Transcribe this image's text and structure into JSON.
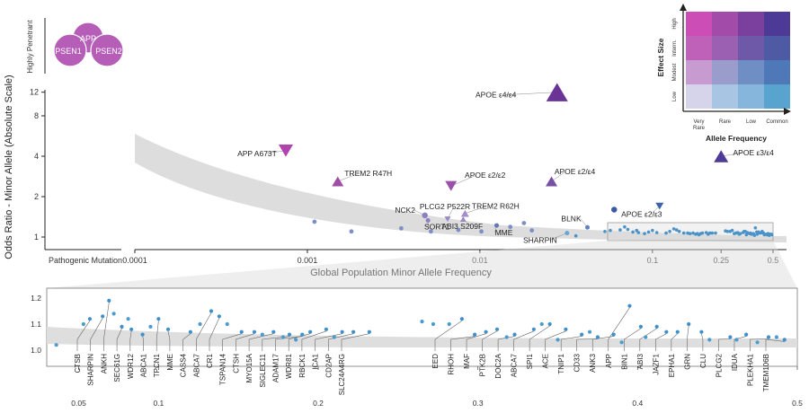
{
  "chart_data": [
    {
      "type": "scatter",
      "panel": "main",
      "xlabel": "Global Population Minor Allele Frequency",
      "ylabel": "Odds Ratio - Minor Allele (Absolute Scale)",
      "x_scale": "log",
      "y_scale": "log",
      "xlim": [
        0.0001,
        0.5
      ],
      "ylim": [
        1,
        12
      ],
      "x_ticks": [
        {
          "value": 0.0001,
          "label": "0.0001"
        },
        {
          "value": 0.001,
          "label": "0.001"
        },
        {
          "value": 0.01,
          "label": "0.01"
        },
        {
          "value": 0.1,
          "label": "0.1"
        },
        {
          "value": 0.25,
          "label": "0.25"
        },
        {
          "value": 0.5,
          "label": "0.5"
        }
      ],
      "y_ticks": [
        {
          "value": 1,
          "label": "1"
        },
        {
          "value": 2,
          "label": "2"
        },
        {
          "value": 4,
          "label": "4"
        },
        {
          "value": 8,
          "label": "8"
        },
        {
          "value": 12,
          "label": "12"
        }
      ],
      "pathogenic_axis_label": "Pathogenic Mutation",
      "shape_legend_label": "Highly Penetrant",
      "penetrant_genes": [
        "APP",
        "PSEN1",
        "PSEN2"
      ],
      "labeled_variants": [
        {
          "label": "APOE ε4/ε4",
          "maf": 0.028,
          "or": 12.0,
          "shape": "triangle-up",
          "color": "#6a3396"
        },
        {
          "label": "APOE ε3/ε4",
          "maf": 0.25,
          "or": 4.0,
          "shape": "triangle-up",
          "color": "#4d3a96"
        },
        {
          "label": "APP A673T",
          "maf": 0.00075,
          "or": 4.4,
          "shape": "triangle-down",
          "color": "#b043ad"
        },
        {
          "label": "TREM2 R47H",
          "maf": 0.0015,
          "or": 2.6,
          "shape": "triangle-up",
          "color": "#9e4fa5"
        },
        {
          "label": "APOE ε2/ε2",
          "maf": 0.0068,
          "or": 2.4,
          "shape": "triangle-down",
          "color": "#9a52a8"
        },
        {
          "label": "APOE ε2/ε4",
          "maf": 0.026,
          "or": 2.6,
          "shape": "triangle-up",
          "color": "#7750a4"
        },
        {
          "label": "APOE ε2/ε3",
          "maf": 0.11,
          "or": 1.7,
          "shape": "triangle-down",
          "color": "#3d64a8"
        },
        {
          "label": "NCK2",
          "maf": 0.0048,
          "or": 1.45,
          "shape": "circle",
          "color": "#8c80c0"
        },
        {
          "label": "SORT1",
          "maf": 0.005,
          "or": 1.33,
          "shape": "circle",
          "color": "#8c80c0"
        },
        {
          "label": "PLCG2 P522R",
          "maf": 0.0065,
          "or": 1.36,
          "shape": "triangle-down",
          "color": "#9a88c8"
        },
        {
          "label": "ABI3 S209F",
          "maf": 0.008,
          "or": 1.36,
          "shape": "triangle-up",
          "color": "#9a88c8"
        },
        {
          "label": "TREM2 R62H",
          "maf": 0.0082,
          "or": 1.5,
          "shape": "triangle-up",
          "color": "#a78ccd"
        },
        {
          "label": "MME",
          "maf": 0.0125,
          "or": 1.22,
          "shape": "circle",
          "color": "#6277b5"
        },
        {
          "label": "BLNK",
          "maf": 0.042,
          "or": 1.18,
          "shape": "circle",
          "color": "#5f83c0"
        },
        {
          "label": "SHARPIN",
          "maf": 0.032,
          "or": 1.07,
          "shape": "circle",
          "color": "#6aa6d4"
        },
        {
          "label": "",
          "maf": 0.06,
          "or": 1.6,
          "shape": "circle",
          "color": "#3b59a5"
        }
      ],
      "unlabeled_points": [
        {
          "maf": 0.0011,
          "or": 1.3
        },
        {
          "maf": 0.0018,
          "or": 1.1
        },
        {
          "maf": 0.0035,
          "or": 1.16
        },
        {
          "maf": 0.0052,
          "or": 1.1
        },
        {
          "maf": 0.0075,
          "or": 1.13
        },
        {
          "maf": 0.0102,
          "or": 1.1
        },
        {
          "maf": 0.015,
          "or": 1.19
        },
        {
          "maf": 0.018,
          "or": 1.27
        },
        {
          "maf": 0.02,
          "or": 1.12
        }
      ],
      "legend": {
        "xlabel": "Allele Frequency",
        "ylabel": "Effect Size",
        "x_levels": [
          "Very Rare",
          "Rare",
          "Low",
          "Common"
        ],
        "y_levels": [
          "Low",
          "Modest",
          "Interm.",
          "High"
        ],
        "placement": "top-right",
        "colors": [
          [
            "#d5d4ea",
            "#a9c5e4",
            "#86b6db",
            "#58a4cf"
          ],
          [
            "#c79ad0",
            "#9a9dcc",
            "#6f8fc4",
            "#4f78b8"
          ],
          [
            "#bf60b9",
            "#9c60b3",
            "#6e59a8",
            "#4f5aa4"
          ],
          [
            "#cc4db5",
            "#a34ba9",
            "#7b3f9e",
            "#4d3a96"
          ]
        ]
      }
    },
    {
      "type": "scatter",
      "panel": "zoom",
      "x_scale": "linear",
      "xlim": [
        0.03,
        0.5
      ],
      "ylim": [
        0.97,
        1.22
      ],
      "x_ticks": [
        {
          "value": 0.05,
          "label": "0.05"
        },
        {
          "value": 0.1,
          "label": "0.1"
        },
        {
          "value": 0.2,
          "label": "0.2"
        },
        {
          "value": 0.3,
          "label": "0.3"
        },
        {
          "value": 0.4,
          "label": "0.4"
        },
        {
          "value": 0.5,
          "label": "0.5"
        }
      ],
      "y_ticks": [
        {
          "value": 1.0,
          "label": "1.0"
        },
        {
          "value": 1.1,
          "label": "1.1"
        },
        {
          "value": 1.2,
          "label": "1.2"
        }
      ],
      "labeled_points": [
        {
          "label": "CTSB",
          "maf": 0.057,
          "or": 1.12
        },
        {
          "label": "SHARPIN",
          "maf": 0.065,
          "or": 1.13
        },
        {
          "label": "ANKH",
          "maf": 0.069,
          "or": 1.19
        },
        {
          "label": "SEC61G",
          "maf": 0.077,
          "or": 1.09
        },
        {
          "label": "WDR12",
          "maf": 0.083,
          "or": 1.08
        },
        {
          "label": "ABCA1",
          "maf": 0.09,
          "or": 1.06
        },
        {
          "label": "TPCN1",
          "maf": 0.1,
          "or": 1.12
        },
        {
          "label": "MME",
          "maf": 0.106,
          "or": 1.08
        },
        {
          "label": "CASS4",
          "maf": 0.12,
          "or": 1.07
        },
        {
          "label": "ABCA7",
          "maf": 0.133,
          "or": 1.15
        },
        {
          "label": "CR1",
          "maf": 0.138,
          "or": 1.13
        },
        {
          "label": "TSPAN14",
          "maf": 0.152,
          "or": 1.07
        },
        {
          "label": "CTSH",
          "maf": 0.16,
          "or": 1.07
        },
        {
          "label": "MYO15A",
          "maf": 0.172,
          "or": 1.07
        },
        {
          "label": "SIGLEC11",
          "maf": 0.182,
          "or": 1.06
        },
        {
          "label": "ADAM17",
          "maf": 0.19,
          "or": 1.06
        },
        {
          "label": "WDR81",
          "maf": 0.195,
          "or": 1.07
        },
        {
          "label": "RBCK1",
          "maf": 0.205,
          "or": 1.08
        },
        {
          "label": "ICA1",
          "maf": 0.215,
          "or": 1.07
        },
        {
          "label": "CD2AP",
          "maf": 0.222,
          "or": 1.07
        },
        {
          "label": "SLC24A4RG",
          "maf": 0.232,
          "or": 1.07
        },
        {
          "label": "EED",
          "maf": 0.29,
          "or": 1.12
        },
        {
          "label": "RHOH",
          "maf": 0.298,
          "or": 1.06
        },
        {
          "label": "MAF",
          "maf": 0.305,
          "or": 1.07
        },
        {
          "label": "PTK2B",
          "maf": 0.312,
          "or": 1.08
        },
        {
          "label": "DOC2A",
          "maf": 0.323,
          "or": 1.06
        },
        {
          "label": "ABCA7",
          "maf": 0.335,
          "or": 1.08
        },
        {
          "label": "SPI1",
          "maf": 0.345,
          "or": 1.1
        },
        {
          "label": "ACE",
          "maf": 0.355,
          "or": 1.08
        },
        {
          "label": "TNIP1",
          "maf": 0.365,
          "or": 1.06
        },
        {
          "label": "CD33",
          "maf": 0.375,
          "or": 1.05
        },
        {
          "label": "ANK3",
          "maf": 0.385,
          "or": 1.06
        },
        {
          "label": "APP",
          "maf": 0.395,
          "or": 1.17
        },
        {
          "label": "BIN1",
          "maf": 0.402,
          "or": 1.09
        },
        {
          "label": "ABI3",
          "maf": 0.412,
          "or": 1.09
        },
        {
          "label": "JAZF1",
          "maf": 0.418,
          "or": 1.07
        },
        {
          "label": "EPHA1",
          "maf": 0.425,
          "or": 1.07
        },
        {
          "label": "GRN",
          "maf": 0.432,
          "or": 1.1
        },
        {
          "label": "CLU",
          "maf": 0.44,
          "or": 1.07
        },
        {
          "label": "PLCG2",
          "maf": 0.458,
          "or": 1.05
        },
        {
          "label": "IDUA",
          "maf": 0.468,
          "or": 1.06
        },
        {
          "label": "PLEKHA1",
          "maf": 0.482,
          "or": 1.05
        },
        {
          "label": "TMEM106B",
          "maf": 0.492,
          "or": 1.04
        }
      ],
      "unlabeled_points": [
        {
          "maf": 0.036,
          "or": 1.02
        },
        {
          "maf": 0.053,
          "or": 1.1
        },
        {
          "maf": 0.072,
          "or": 1.14
        },
        {
          "maf": 0.081,
          "or": 1.12
        },
        {
          "maf": 0.095,
          "or": 1.09
        },
        {
          "maf": 0.126,
          "or": 1.1
        },
        {
          "maf": 0.143,
          "or": 1.1
        },
        {
          "maf": 0.165,
          "or": 1.06
        },
        {
          "maf": 0.178,
          "or": 1.05
        },
        {
          "maf": 0.186,
          "or": 1.04
        },
        {
          "maf": 0.21,
          "or": 1.05
        },
        {
          "maf": 0.265,
          "or": 1.11
        },
        {
          "maf": 0.272,
          "or": 1.1
        },
        {
          "maf": 0.282,
          "or": 1.1
        },
        {
          "maf": 0.318,
          "or": 1.05
        },
        {
          "maf": 0.34,
          "or": 1.1
        },
        {
          "maf": 0.35,
          "or": 1.04
        },
        {
          "maf": 0.37,
          "or": 1.07
        },
        {
          "maf": 0.39,
          "or": 1.03
        },
        {
          "maf": 0.405,
          "or": 1.05
        },
        {
          "maf": 0.445,
          "or": 1.04
        },
        {
          "maf": 0.462,
          "or": 1.04
        },
        {
          "maf": 0.475,
          "or": 1.03
        },
        {
          "maf": 0.487,
          "or": 1.05
        }
      ]
    }
  ]
}
